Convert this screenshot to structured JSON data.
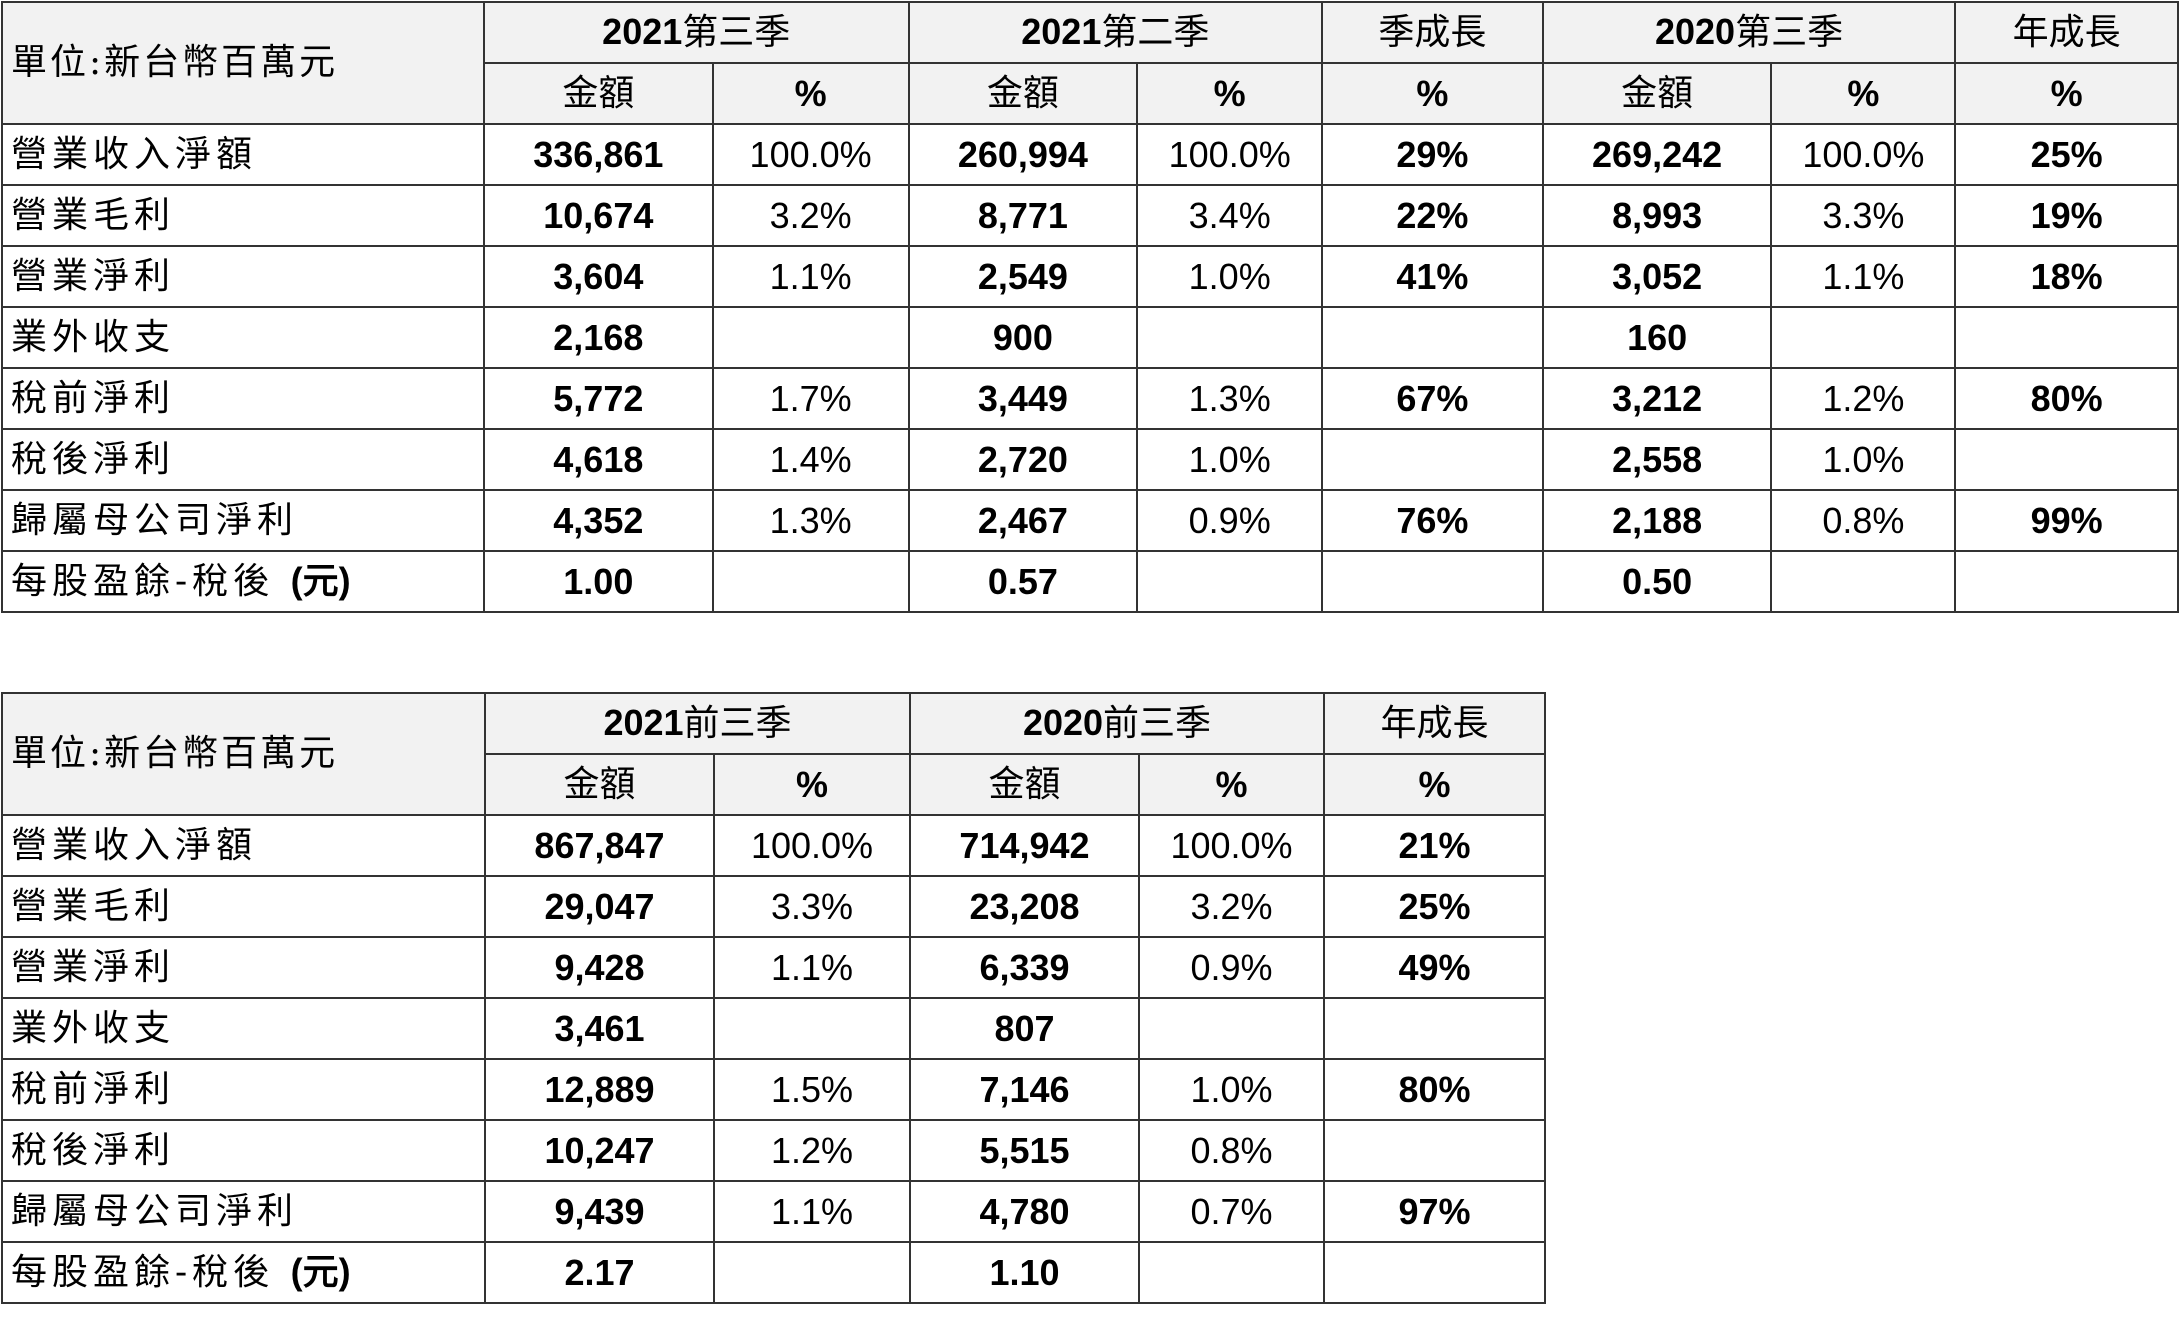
{
  "table1": {
    "unit_label": "單位:新台幣百萬元",
    "headers": {
      "h1": {
        "year": "2021",
        "term": "第三季"
      },
      "h2": {
        "year": "2021",
        "term": "第二季"
      },
      "h3": "季成長",
      "h4": {
        "year": "2020",
        "term": "第三季"
      },
      "h5": "年成長"
    },
    "subheaders": [
      "金額",
      "%",
      "金額",
      "%",
      "%",
      "金額",
      "%",
      "%"
    ],
    "rows": [
      {
        "label": "營業收入淨額",
        "cells": [
          "336,861",
          "100.0%",
          "260,994",
          "100.0%",
          "29%",
          "269,242",
          "100.0%",
          "25%"
        ]
      },
      {
        "label": "營業毛利",
        "cells": [
          "10,674",
          "3.2%",
          "8,771",
          "3.4%",
          "22%",
          "8,993",
          "3.3%",
          "19%"
        ]
      },
      {
        "label": "營業淨利",
        "cells": [
          "3,604",
          "1.1%",
          "2,549",
          "1.0%",
          "41%",
          "3,052",
          "1.1%",
          "18%"
        ]
      },
      {
        "label": "業外收支",
        "cells": [
          "2,168",
          "",
          "900",
          "",
          "",
          "160",
          "",
          ""
        ]
      },
      {
        "label": "稅前淨利",
        "cells": [
          "5,772",
          "1.7%",
          "3,449",
          "1.3%",
          "67%",
          "3,212",
          "1.2%",
          "80%"
        ]
      },
      {
        "label": "稅後淨利",
        "cells": [
          "4,618",
          "1.4%",
          "2,720",
          "1.0%",
          "",
          "2,558",
          "1.0%",
          ""
        ]
      },
      {
        "label": "歸屬母公司淨利",
        "cells": [
          "4,352",
          "1.3%",
          "2,467",
          "0.9%",
          "76%",
          "2,188",
          "0.8%",
          "99%"
        ]
      },
      {
        "label": "每股盈餘-稅後",
        "label_suffix": "(元)",
        "cells": [
          "1.00",
          "",
          "0.57",
          "",
          "",
          "0.50",
          "",
          ""
        ]
      }
    ]
  },
  "table2": {
    "unit_label": "單位:新台幣百萬元",
    "headers": {
      "h1": {
        "year": "2021",
        "term": "前三季"
      },
      "h2": {
        "year": "2020",
        "term": "前三季"
      },
      "h3": "年成長"
    },
    "subheaders": [
      "金額",
      "%",
      "金額",
      "%",
      "%"
    ],
    "rows": [
      {
        "label": "營業收入淨額",
        "cells": [
          "867,847",
          "100.0%",
          "714,942",
          "100.0%",
          "21%"
        ]
      },
      {
        "label": "營業毛利",
        "cells": [
          "29,047",
          "3.3%",
          "23,208",
          "3.2%",
          "25%"
        ]
      },
      {
        "label": "營業淨利",
        "cells": [
          "9,428",
          "1.1%",
          "6,339",
          "0.9%",
          "49%"
        ]
      },
      {
        "label": "業外收支",
        "cells": [
          "3,461",
          "",
          "807",
          "",
          ""
        ]
      },
      {
        "label": "稅前淨利",
        "cells": [
          "12,889",
          "1.5%",
          "7,146",
          "1.0%",
          "80%"
        ]
      },
      {
        "label": "稅後淨利",
        "cells": [
          "10,247",
          "1.2%",
          "5,515",
          "0.8%",
          ""
        ]
      },
      {
        "label": "歸屬母公司淨利",
        "cells": [
          "9,439",
          "1.1%",
          "4,780",
          "0.7%",
          "97%"
        ]
      },
      {
        "label": "每股盈餘-稅後",
        "label_suffix": "(元)",
        "cells": [
          "2.17",
          "",
          "1.10",
          "",
          ""
        ]
      }
    ]
  }
}
